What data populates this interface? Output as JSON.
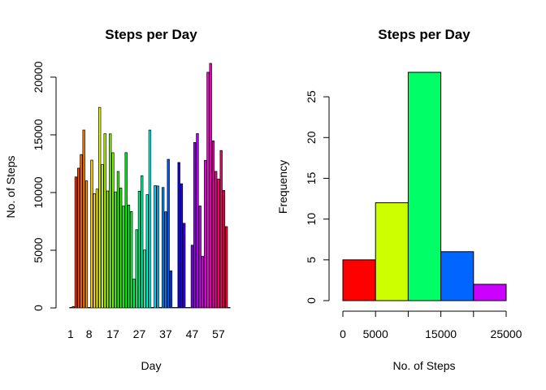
{
  "chart_data": [
    {
      "type": "bar",
      "title": "Steps per Day",
      "xlabel": "Day",
      "ylabel": "No. of Steps",
      "ylim": [
        0,
        21194
      ],
      "yticks": [
        "0",
        "5000",
        "10000",
        "15000",
        "20000"
      ],
      "xtick_labels": [
        "1",
        "8",
        "17",
        "27",
        "37",
        "47",
        "57"
      ],
      "xtick_positions": [
        1,
        8,
        17,
        27,
        37,
        47,
        57
      ],
      "grid": false,
      "legend": "none",
      "days": [
        1,
        2,
        3,
        4,
        5,
        6,
        7,
        8,
        9,
        10,
        11,
        12,
        13,
        14,
        15,
        16,
        17,
        18,
        19,
        20,
        21,
        22,
        23,
        24,
        25,
        26,
        27,
        28,
        29,
        30,
        31,
        32,
        33,
        34,
        35,
        36,
        37,
        38,
        39,
        40,
        41,
        42,
        43,
        44,
        45,
        46,
        47,
        48,
        49,
        50,
        51,
        52,
        53,
        54,
        55,
        56,
        57,
        58,
        59,
        60,
        61
      ],
      "values": [
        0,
        126,
        11352,
        12116,
        13294,
        15420,
        11015,
        0,
        12811,
        9900,
        10304,
        17382,
        12426,
        15098,
        10139,
        15084,
        13452,
        10056,
        11829,
        10395,
        8821,
        13460,
        8918,
        8355,
        2492,
        6778,
        10119,
        11458,
        5018,
        9819,
        15414,
        0,
        10600,
        10571,
        0,
        10439,
        8334,
        12883,
        3219,
        0,
        0,
        12608,
        10765,
        7336,
        0,
        41,
        5441,
        14339,
        15110,
        8841,
        4472,
        12787,
        20427,
        21194,
        14478,
        11834,
        11162,
        13646,
        10183,
        7047,
        0
      ],
      "colors": [
        "#FF0000",
        "#FF1900",
        "#FF3200",
        "#FF4B00",
        "#FF6400",
        "#FF7D00",
        "#FF9600",
        "#FFAF00",
        "#FFC800",
        "#FFE100",
        "#FFFA00",
        "#EBFF00",
        "#D2FF00",
        "#B9FF00",
        "#A0FF00",
        "#87FF00",
        "#6EFF00",
        "#55FF00",
        "#3CFF00",
        "#23FF00",
        "#0AFF00",
        "#00FF0F",
        "#00FF28",
        "#00FF41",
        "#00FF5A",
        "#00FF73",
        "#00FF8C",
        "#00FFA5",
        "#00FFBE",
        "#00FFD7",
        "#00FFF0",
        "#00F0FF",
        "#00D7FF",
        "#00BEFF",
        "#00A5FF",
        "#008CFF",
        "#0073FF",
        "#005AFF",
        "#0041FF",
        "#0028FF",
        "#000FFF",
        "#0A00FF",
        "#2300FF",
        "#3C00FF",
        "#5500FF",
        "#6E00FF",
        "#8700FF",
        "#A000FF",
        "#B900FF",
        "#D200FF",
        "#EB00FF",
        "#FF00FA",
        "#FF00E1",
        "#FF00C8",
        "#FF00AF",
        "#FF0096",
        "#FF007D",
        "#FF0064",
        "#FF004B",
        "#FF0032",
        "#FF0019"
      ]
    },
    {
      "type": "bar",
      "title": "Steps per Day",
      "xlabel": "No. of Steps",
      "ylabel": "Frequency",
      "bins": [
        [
          0,
          5000
        ],
        [
          5000,
          10000
        ],
        [
          10000,
          15000
        ],
        [
          15000,
          20000
        ],
        [
          20000,
          25000
        ]
      ],
      "values": [
        5,
        12,
        28,
        6,
        2
      ],
      "colors": [
        "#FF0000",
        "#CCFF00",
        "#00FF66",
        "#0066FF",
        "#CC00FF"
      ],
      "ylim": [
        0,
        28
      ],
      "yticks": [
        "0",
        "5",
        "10",
        "15",
        "20",
        "25"
      ],
      "xticks": [
        "0",
        "5000",
        "15000",
        "25000"
      ],
      "xtick_values": [
        0,
        5000,
        15000,
        25000
      ],
      "minor_xtick_values": [
        10000,
        20000
      ],
      "grid": false,
      "legend": "none"
    }
  ]
}
